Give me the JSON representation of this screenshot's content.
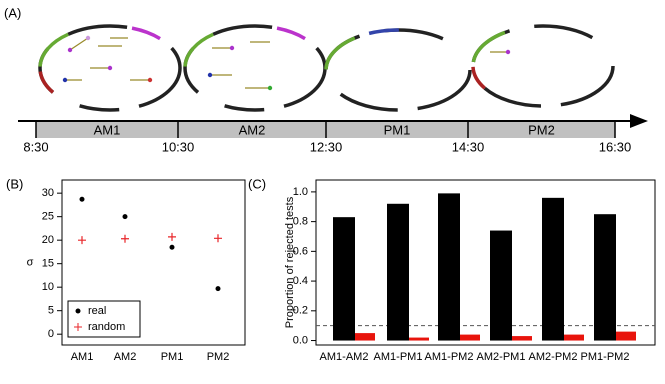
{
  "timeline": {
    "panel_label": "(A)",
    "periods": [
      "AM1",
      "AM2",
      "PM1",
      "PM2"
    ],
    "times": [
      "8:30",
      "10:30",
      "12:30",
      "14:30",
      "16:30"
    ]
  },
  "chart_data": [
    {
      "type": "scatter",
      "panel_label": "(B)",
      "y_label": "σ",
      "categories": [
        "AM1",
        "AM2",
        "PM1",
        "PM2"
      ],
      "series": [
        {
          "name": "real",
          "color": "#000000",
          "marker": "dot",
          "values": [
            28.7,
            25,
            18.5,
            9.7
          ]
        },
        {
          "name": "random",
          "color": "#e8262a",
          "marker": "plus",
          "values": [
            20,
            20.3,
            20.7,
            20.4
          ]
        }
      ],
      "ylim": [
        -2.3,
        32.8
      ],
      "yticks": [
        0,
        5,
        10,
        15,
        20,
        25,
        30
      ],
      "legend": "bottom-left"
    },
    {
      "type": "bar",
      "panel_label": "(C)",
      "y_label": "Proportion of rejected tests",
      "categories": [
        "AM1-AM2",
        "AM1-PM1",
        "AM1-PM2",
        "AM2-PM1",
        "AM2-PM2",
        "PM1-PM2"
      ],
      "series": [
        {
          "color": "#000000",
          "values": [
            0.83,
            0.92,
            0.99,
            0.74,
            0.96,
            0.85
          ]
        },
        {
          "color": "#e8140c",
          "values": [
            0.05,
            0.02,
            0.04,
            0.03,
            0.04,
            0.06
          ]
        }
      ],
      "ylim": [
        -0.03,
        1.08
      ],
      "yticks": [
        {
          "value": 0,
          "label": "0.0"
        },
        0.2,
        0.4,
        0.6,
        0.8,
        {
          "value": 1,
          "label": "1.0"
        }
      ],
      "hline": 0.1
    }
  ]
}
